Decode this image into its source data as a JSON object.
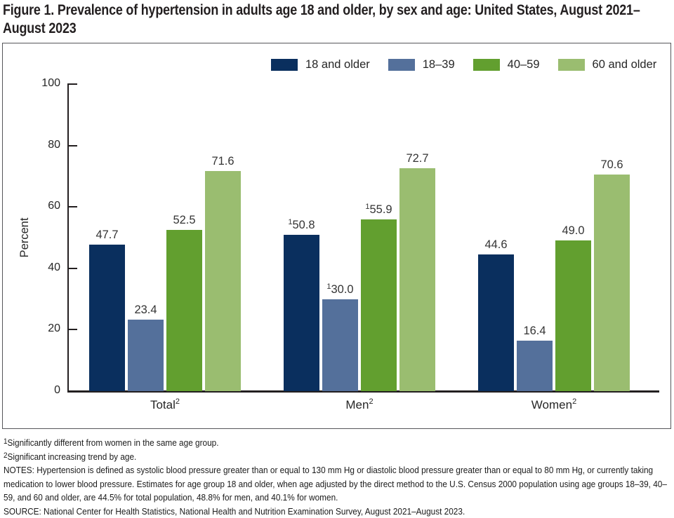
{
  "figure": {
    "title": "Figure 1. Prevalence of hypertension in adults age 18 and older, by sex and age: United States, August 2021–August 2023"
  },
  "chart_data": {
    "type": "bar",
    "title": "Figure 1. Prevalence of hypertension in adults age 18 and older, by sex and age: United States, August 2021–August 2023",
    "xlabel": "",
    "ylabel": "Percent",
    "ylim": [
      0,
      100
    ],
    "yticks": [
      0,
      20,
      40,
      60,
      80,
      100
    ],
    "grid": false,
    "legend_position": "top",
    "categories": [
      "Total",
      "Men",
      "Women"
    ],
    "category_superscript": "2",
    "series": [
      {
        "name": "18 and older",
        "color": "#0a2f5e",
        "values": [
          47.7,
          50.8,
          44.6
        ],
        "value_superscripts": [
          "",
          "1",
          ""
        ]
      },
      {
        "name": "18–39",
        "color": "#54709b",
        "values": [
          23.4,
          30.0,
          16.4
        ],
        "value_superscripts": [
          "",
          "1",
          ""
        ]
      },
      {
        "name": "40–59",
        "color": "#629f2f",
        "values": [
          52.5,
          55.9,
          49.0
        ],
        "value_superscripts": [
          "",
          "1",
          ""
        ]
      },
      {
        "name": "60 and older",
        "color": "#9abd70",
        "values": [
          71.6,
          72.7,
          70.6
        ],
        "value_superscripts": [
          "",
          "",
          ""
        ]
      }
    ]
  },
  "footnotes": {
    "fn1": {
      "sup": "1",
      "text": "Significantly different from women in the same age group."
    },
    "fn2": {
      "sup": "2",
      "text": "Significant increasing trend by age."
    },
    "notes": "NOTES: Hypertension is defined as systolic blood pressure greater than or equal to 130 mm Hg or diastolic blood pressure greater than or equal to 80 mm Hg, or currently taking medication to lower blood pressure. Estimates for age group 18 and older, when age adjusted by the direct method to the U.S. Census 2000 population using age groups 18–39, 40–59, and 60 and older, are 44.5% for total population, 48.8% for men, and 40.1% for women.",
    "source": "SOURCE: National Center for Health Statistics, National Health and Nutrition Examination Survey, August 2021–August 2023."
  }
}
